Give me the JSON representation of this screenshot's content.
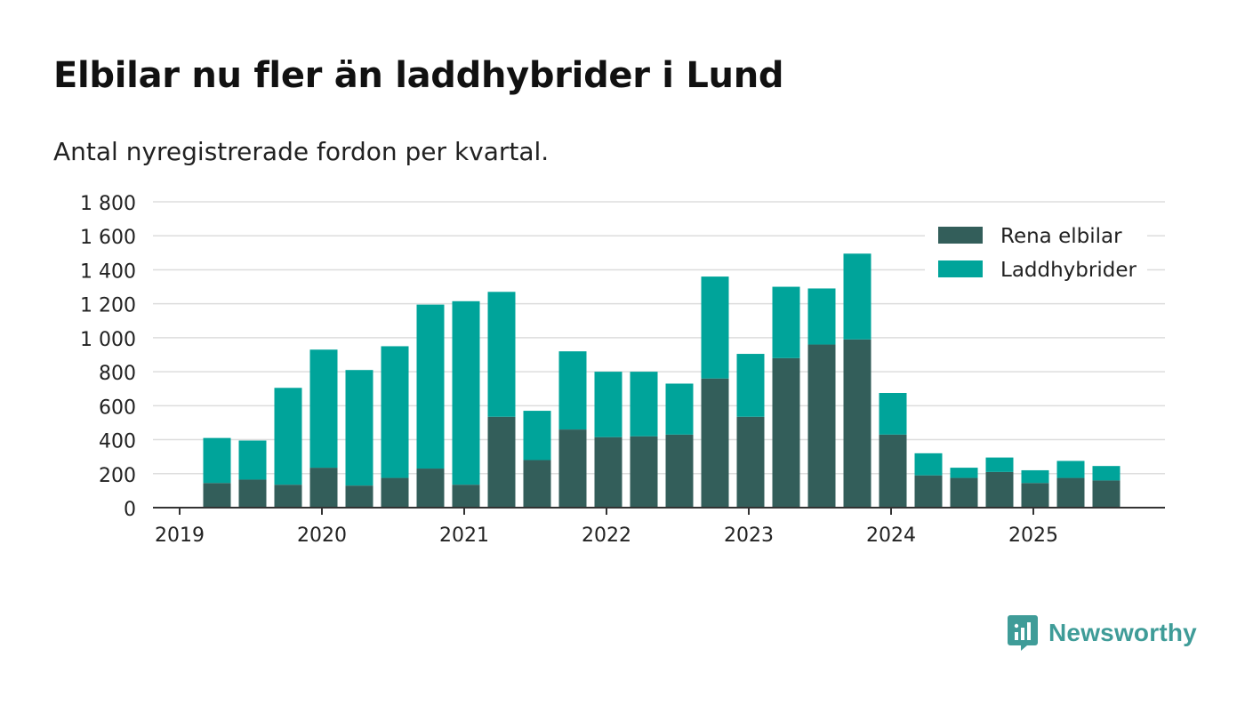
{
  "chart_data": {
    "type": "bar",
    "stacked": true,
    "title": "Elbilar nu fler än laddhybrider i Lund",
    "subtitle": "Antal nyregistrerade fordon per kvartal.",
    "xlabel": "",
    "ylabel": "",
    "ylim": [
      0,
      1800
    ],
    "yticks": [
      {
        "value": 0,
        "label": "0"
      },
      {
        "value": 200,
        "label": "200"
      },
      {
        "value": 400,
        "label": "400"
      },
      {
        "value": 600,
        "label": "600"
      },
      {
        "value": 800,
        "label": "800"
      },
      {
        "value": 1000,
        "label": "1 000"
      },
      {
        "value": 1200,
        "label": "1 200"
      },
      {
        "value": 1400,
        "label": "1 400"
      },
      {
        "value": 1600,
        "label": "1 600"
      },
      {
        "value": 1800,
        "label": "1 800"
      }
    ],
    "xticks": [
      "2019",
      "2020",
      "2021",
      "2022",
      "2023",
      "2024",
      "2025"
    ],
    "legend_position": "top-right",
    "categories": [
      "2019 Q2",
      "2019 Q3",
      "2019 Q4",
      "2020 Q1",
      "2020 Q2",
      "2020 Q3",
      "2020 Q4",
      "2021 Q1",
      "2021 Q2",
      "2021 Q3",
      "2021 Q4",
      "2022 Q1",
      "2022 Q2",
      "2022 Q3",
      "2022 Q4",
      "2023 Q1",
      "2023 Q2",
      "2023 Q3",
      "2023 Q4",
      "2024 Q1",
      "2024 Q2",
      "2024 Q3",
      "2024 Q4",
      "2025 Q1",
      "2025 Q2",
      "2025 Q3"
    ],
    "series": [
      {
        "name": "Rena elbilar",
        "color": "#335e5a",
        "values": [
          145,
          165,
          135,
          235,
          130,
          175,
          230,
          135,
          535,
          280,
          460,
          415,
          420,
          430,
          760,
          535,
          880,
          960,
          990,
          430,
          190,
          175,
          210,
          145,
          175,
          160
        ]
      },
      {
        "name": "Laddhybrider",
        "color": "#00a49a",
        "values": [
          265,
          230,
          570,
          695,
          680,
          775,
          965,
          1080,
          735,
          290,
          460,
          385,
          380,
          300,
          600,
          370,
          420,
          330,
          505,
          245,
          130,
          60,
          85,
          75,
          100,
          85
        ]
      }
    ]
  },
  "brand": {
    "name": "Newsworthy",
    "color": "#3f9c98"
  }
}
